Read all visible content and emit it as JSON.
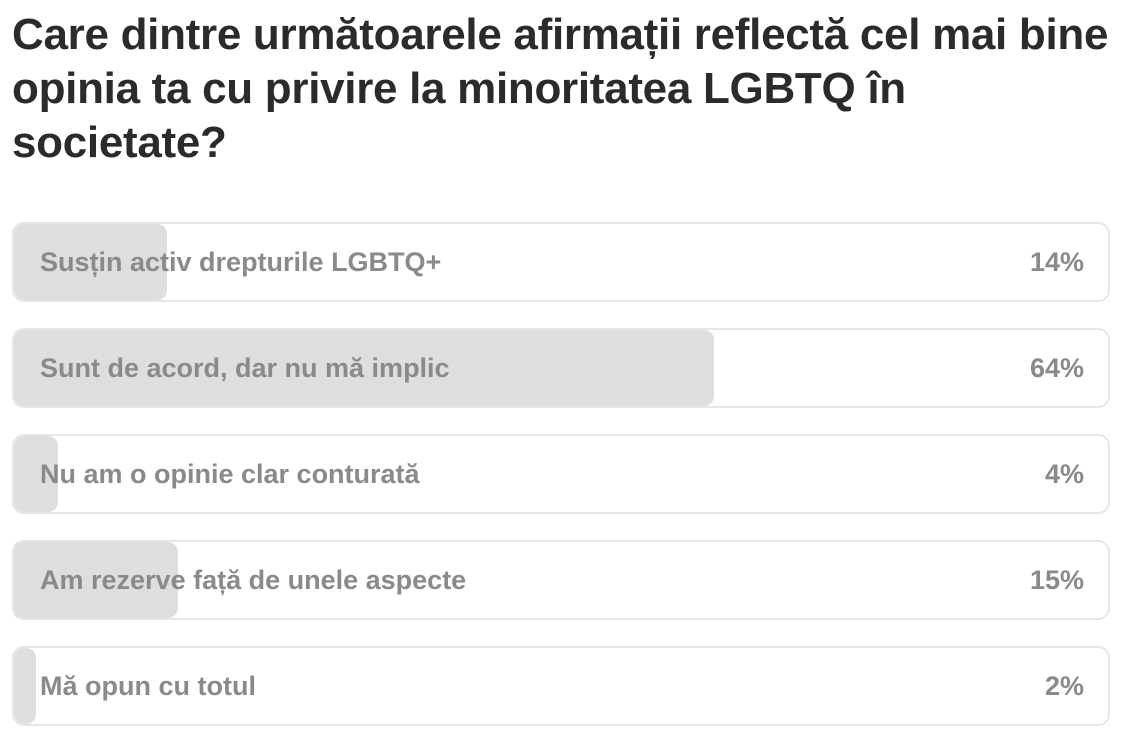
{
  "poll": {
    "question": "Care dintre următoarele afirmații reflectă cel mai bine opinia ta cu privire la minoritatea LGBTQ în societate?",
    "options": [
      {
        "label": "Susțin activ drepturile LGBTQ+",
        "percent_text": "14%",
        "percent": 14
      },
      {
        "label": "Sunt de acord, dar nu mă implic",
        "percent_text": "64%",
        "percent": 64
      },
      {
        "label": "Nu am o opinie clar conturată",
        "percent_text": "4%",
        "percent": 4
      },
      {
        "label": "Am rezerve față de unele aspecte",
        "percent_text": "15%",
        "percent": 15
      },
      {
        "label": "Mă opun cu totul",
        "percent_text": "2%",
        "percent": 2
      }
    ]
  },
  "colors": {
    "question_text": "#2b2b2b",
    "option_text": "#8a8a8a",
    "bar_fill": "#dedede",
    "option_border": "#e6e6e6"
  }
}
